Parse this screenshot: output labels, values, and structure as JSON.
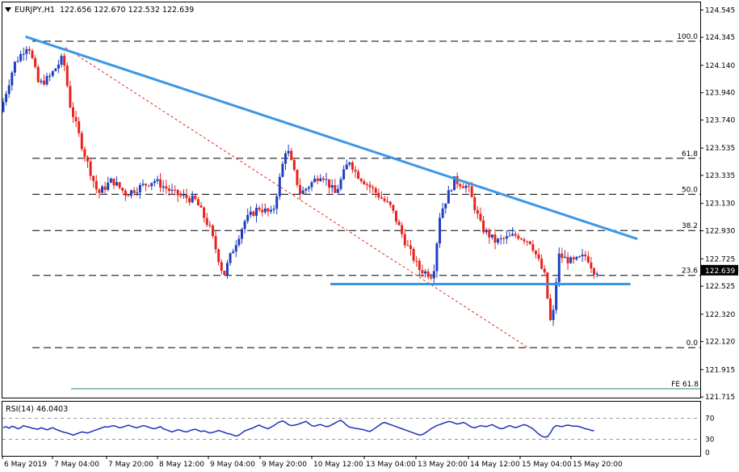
{
  "header": {
    "symbol": "EURJPY,H1",
    "ohlc": "122.656 122.670 122.532 122.639"
  },
  "colors": {
    "bull": "#1f3fbf",
    "bear": "#e8231d",
    "trendline": "#3b97e6",
    "fib_dash": "#000000",
    "fe_line": "#2e8b57",
    "rsi_line": "#1f2fbf",
    "price_tag_bg": "#000000"
  },
  "chart_data": {
    "type": "candlestick",
    "symbol": "EURJPY",
    "timeframe": "H1",
    "last_price": "122.639",
    "ylim": [
      121.71,
      124.6
    ],
    "y_ticks": [
      "124.545",
      "124.345",
      "124.140",
      "123.940",
      "123.740",
      "123.535",
      "123.335",
      "123.130",
      "122.930",
      "122.725",
      "122.525",
      "122.320",
      "122.120",
      "121.915",
      "121.715"
    ],
    "x_ticks": [
      "6 May 2019",
      "7 May 04:00",
      "7 May 20:00",
      "8 May 12:00",
      "9 May 04:00",
      "9 May 20:00",
      "10 May 12:00",
      "13 May 04:00",
      "13 May 20:00",
      "14 May 12:00",
      "15 May 04:00",
      "15 May 20:00"
    ],
    "fib_levels": [
      {
        "label": "100.0",
        "price": 124.316
      },
      {
        "label": "61.8",
        "price": 123.46
      },
      {
        "label": "50.0",
        "price": 123.197
      },
      {
        "label": "38.2",
        "price": 122.932
      },
      {
        "label": "23.6",
        "price": 122.604
      },
      {
        "label": "0.0",
        "price": 122.076
      }
    ],
    "fe_level": {
      "label": "FE 61.8",
      "price": 121.775
    },
    "trendlines": [
      {
        "name": "falling-resistance",
        "from": [
          0.033,
          124.35
        ],
        "to": [
          0.91,
          122.87
        ]
      },
      {
        "name": "horizontal-support",
        "from": [
          0.47,
          122.54
        ],
        "to": [
          0.9,
          122.54
        ]
      }
    ],
    "fib_swing": {
      "from": [
        0.09,
        124.27
      ],
      "to": [
        0.755,
        122.07
      ]
    },
    "rsi": {
      "label": "RSI(14) 46.0403",
      "levels": [
        70,
        30
      ],
      "ylim": [
        0,
        100
      ],
      "axis_labels": [
        "70",
        "30",
        "0"
      ],
      "values": [
        52,
        54,
        51,
        55,
        53,
        50,
        52,
        56,
        54,
        53,
        51,
        50,
        49,
        52,
        50,
        48,
        50,
        52,
        49,
        47,
        45,
        43,
        42,
        40,
        38,
        40,
        42,
        44,
        43,
        42,
        44,
        46,
        48,
        50,
        52,
        54,
        53,
        55,
        56,
        54,
        52,
        53,
        55,
        57,
        55,
        53,
        52,
        54,
        56,
        55,
        53,
        51,
        50,
        52,
        54,
        50,
        48,
        46,
        44,
        46,
        48,
        47,
        45,
        44,
        46,
        48,
        49,
        47,
        45,
        46,
        44,
        42,
        43,
        45,
        47,
        45,
        43,
        41,
        40,
        38,
        36,
        38,
        42,
        46,
        48,
        50,
        52,
        55,
        57,
        54,
        52,
        50,
        53,
        56,
        60,
        63,
        65,
        62,
        58,
        56,
        57,
        58,
        60,
        62,
        64,
        60,
        56,
        55,
        57,
        58,
        56,
        54,
        55,
        58,
        61,
        64,
        66,
        62,
        57,
        53,
        52,
        51,
        50,
        49,
        48,
        46,
        45,
        48,
        52,
        56,
        60,
        62,
        60,
        58,
        56,
        54,
        52,
        50,
        48,
        46,
        44,
        42,
        40,
        38,
        39,
        42,
        46,
        50,
        53,
        56,
        58,
        60,
        62,
        64,
        63,
        61,
        59,
        60,
        62,
        60,
        56,
        53,
        52,
        54,
        56,
        55,
        54,
        56,
        58,
        55,
        52,
        50,
        51,
        54,
        56,
        54,
        52,
        54,
        56,
        58,
        56,
        53,
        50,
        45,
        40,
        36,
        34,
        35,
        42,
        52,
        56,
        55,
        54,
        56,
        57,
        56,
        55,
        55,
        54,
        52,
        50,
        49,
        47,
        46
      ]
    }
  }
}
